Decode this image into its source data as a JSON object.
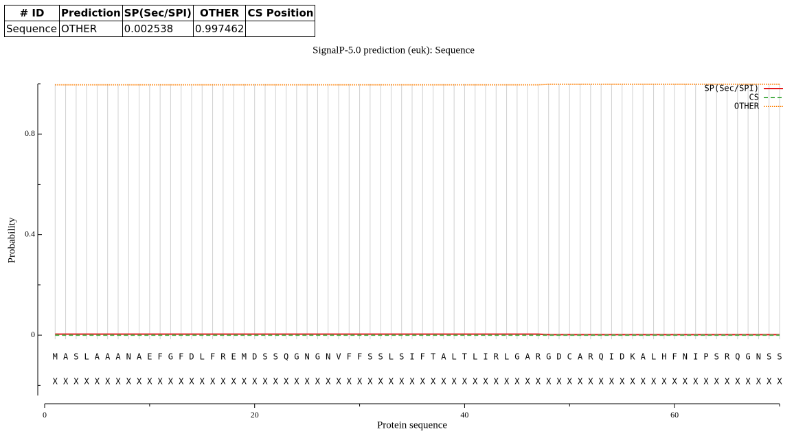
{
  "table": {
    "header": [
      "# ID",
      "Prediction",
      "SP(Sec/SPI)",
      "OTHER",
      "CS Position"
    ],
    "rows": [
      [
        "Sequence",
        "OTHER",
        "0.002538",
        "0.997462"
      ]
    ]
  },
  "chart_data": {
    "type": "line",
    "title": "SignalP-5.0 prediction (euk):  Sequence",
    "xlabel": "Protein sequence",
    "ylabel": "Probability",
    "x": [
      1,
      2,
      3,
      4,
      5,
      6,
      7,
      8,
      9,
      10,
      11,
      12,
      13,
      14,
      15,
      16,
      17,
      18,
      19,
      20,
      21,
      22,
      23,
      24,
      25,
      26,
      27,
      28,
      29,
      30,
      31,
      32,
      33,
      34,
      35,
      36,
      37,
      38,
      39,
      40,
      41,
      42,
      43,
      44,
      45,
      46,
      47,
      48,
      49,
      50,
      51,
      52,
      53,
      54,
      55,
      56,
      57,
      58,
      59,
      60,
      61,
      62,
      63,
      64,
      65,
      66,
      67,
      68,
      69,
      70
    ],
    "sequence": [
      "M",
      "A",
      "S",
      "L",
      "A",
      "A",
      "A",
      "N",
      "A",
      "E",
      "F",
      "G",
      "F",
      "D",
      "L",
      "F",
      "R",
      "E",
      "M",
      "D",
      "S",
      "S",
      "Q",
      "G",
      "N",
      "G",
      "N",
      "V",
      "F",
      "F",
      "S",
      "S",
      "L",
      "S",
      "I",
      "F",
      "T",
      "A",
      "L",
      "T",
      "L",
      "I",
      "R",
      "L",
      "G",
      "A",
      "R",
      "G",
      "D",
      "C",
      "A",
      "R",
      "Q",
      "I",
      "D",
      "K",
      "A",
      "L",
      "H",
      "F",
      "N",
      "I",
      "P",
      "S",
      "R",
      "Q",
      "G",
      "N",
      "S",
      "S"
    ],
    "annotation": [
      "X",
      "X",
      "X",
      "X",
      "X",
      "X",
      "X",
      "X",
      "X",
      "X",
      "X",
      "X",
      "X",
      "X",
      "X",
      "X",
      "X",
      "X",
      "X",
      "X",
      "X",
      "X",
      "X",
      "X",
      "X",
      "X",
      "X",
      "X",
      "X",
      "X",
      "X",
      "X",
      "X",
      "X",
      "X",
      "X",
      "X",
      "X",
      "X",
      "X",
      "X",
      "X",
      "X",
      "X",
      "X",
      "X",
      "X",
      "X",
      "X",
      "X",
      "X",
      "X",
      "X",
      "X",
      "X",
      "X",
      "X",
      "X",
      "X",
      "X",
      "X",
      "X",
      "X",
      "X",
      "X",
      "X",
      "X",
      "X",
      "X",
      "X"
    ],
    "series": [
      {
        "name": "SP(Sec/SPI)",
        "color": "#e41a1c",
        "dash": "solid",
        "values": [
          0.004,
          0.004,
          0.004,
          0.004,
          0.004,
          0.004,
          0.004,
          0.004,
          0.004,
          0.004,
          0.004,
          0.004,
          0.004,
          0.004,
          0.004,
          0.004,
          0.004,
          0.004,
          0.004,
          0.004,
          0.004,
          0.004,
          0.004,
          0.004,
          0.004,
          0.004,
          0.004,
          0.004,
          0.004,
          0.004,
          0.004,
          0.004,
          0.004,
          0.004,
          0.004,
          0.004,
          0.004,
          0.004,
          0.004,
          0.004,
          0.004,
          0.004,
          0.004,
          0.004,
          0.004,
          0.004,
          0.004,
          0.002,
          0.002,
          0.002,
          0.002,
          0.002,
          0.002,
          0.002,
          0.002,
          0.002,
          0.002,
          0.002,
          0.002,
          0.002,
          0.002,
          0.002,
          0.002,
          0.002,
          0.002,
          0.002,
          0.002,
          0.002,
          0.002,
          0.002
        ]
      },
      {
        "name": "CS",
        "color": "#4daf4a",
        "dash": "dashed",
        "values": [
          0,
          0,
          0,
          0,
          0,
          0,
          0,
          0,
          0,
          0,
          0,
          0,
          0,
          0,
          0,
          0,
          0,
          0,
          0,
          0,
          0,
          0,
          0,
          0,
          0,
          0,
          0,
          0,
          0,
          0,
          0,
          0,
          0,
          0,
          0,
          0,
          0,
          0,
          0,
          0,
          0,
          0,
          0,
          0,
          0,
          0,
          0,
          0,
          0,
          0,
          0,
          0,
          0,
          0,
          0,
          0,
          0,
          0,
          0,
          0,
          0,
          0,
          0,
          0,
          0,
          0,
          0,
          0,
          0,
          0
        ]
      },
      {
        "name": "OTHER",
        "color": "#ff7f00",
        "dash": "dotted",
        "values": [
          0.996,
          0.996,
          0.996,
          0.996,
          0.996,
          0.996,
          0.996,
          0.996,
          0.996,
          0.996,
          0.996,
          0.996,
          0.996,
          0.996,
          0.996,
          0.996,
          0.996,
          0.996,
          0.996,
          0.996,
          0.996,
          0.996,
          0.996,
          0.996,
          0.996,
          0.996,
          0.996,
          0.996,
          0.996,
          0.996,
          0.996,
          0.996,
          0.996,
          0.996,
          0.996,
          0.996,
          0.996,
          0.996,
          0.996,
          0.996,
          0.996,
          0.996,
          0.996,
          0.996,
          0.996,
          0.996,
          0.996,
          0.998,
          0.998,
          0.998,
          0.998,
          0.998,
          0.998,
          0.998,
          0.998,
          0.998,
          0.998,
          0.998,
          0.998,
          0.998,
          0.998,
          0.998,
          0.998,
          0.998,
          0.998,
          0.998,
          0.998,
          0.998,
          0.998,
          0.998
        ]
      }
    ],
    "xlim": [
      0,
      70
    ],
    "xticks": [
      0,
      20,
      40,
      60
    ],
    "xminor": [
      10,
      30,
      50,
      70
    ],
    "ylim": [
      -0.24,
      1.0
    ],
    "yticks": [
      0,
      0.4,
      0.8
    ],
    "yminor": [
      -0.2,
      0.2,
      0.6,
      1.0
    ],
    "grid": true,
    "legend": "top-right"
  }
}
